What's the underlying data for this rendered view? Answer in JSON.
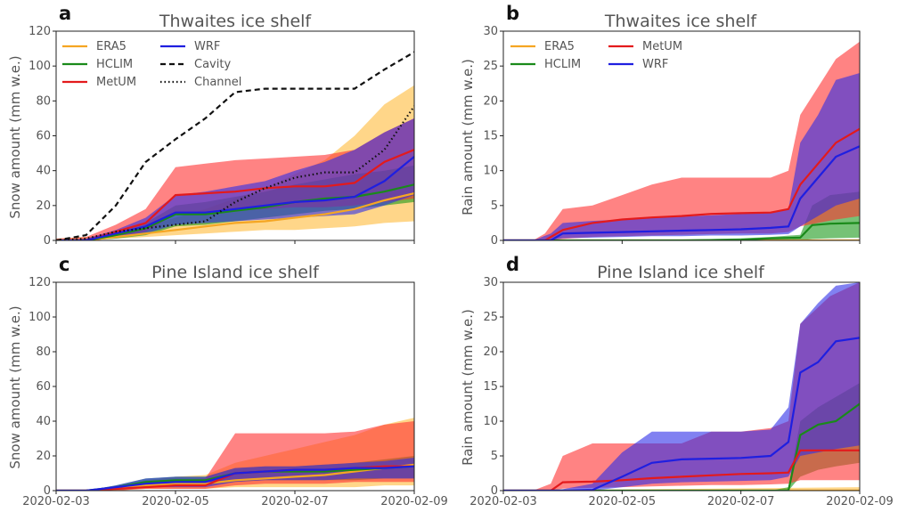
{
  "chart_data": [
    {
      "panel": "a",
      "type": "line",
      "title": "Thwaites ice shelf",
      "xlabel": "",
      "ylabel": "Snow amount (mm w.e.)",
      "xlim": [
        0,
        6
      ],
      "ylim": [
        0,
        120
      ],
      "yticks": [
        0,
        20,
        40,
        60,
        80,
        100,
        120
      ],
      "xticks": [
        0,
        2,
        4,
        6
      ],
      "xticklabels": [
        "",
        "",
        "",
        ""
      ],
      "legend": {
        "placement": "upper-left",
        "columns": 2,
        "entries": [
          "ERA5",
          "HCLIM",
          "MetUM",
          "WRF",
          "Cavity",
          "Channel"
        ]
      },
      "series": [
        {
          "name": "ERA5",
          "color": "#f5a623",
          "style": "solid",
          "x": [
            0,
            0.5,
            1,
            1.5,
            2,
            2.5,
            3,
            3.5,
            4,
            4.5,
            5,
            5.5,
            6
          ],
          "y": [
            0,
            0,
            2,
            4,
            6,
            8,
            10,
            11,
            13,
            15,
            18,
            23,
            27
          ],
          "low": [
            0,
            0,
            1,
            2,
            3,
            4,
            5,
            6,
            6,
            7,
            8,
            10,
            11
          ],
          "high": [
            1,
            2,
            4,
            8,
            13,
            18,
            24,
            30,
            38,
            46,
            60,
            78,
            89
          ]
        },
        {
          "name": "HCLIM",
          "color": "#1a8a1a",
          "style": "solid",
          "x": [
            0,
            0.5,
            1,
            1.5,
            2,
            2.5,
            3,
            3.5,
            4,
            4.5,
            5,
            5.5,
            6
          ],
          "y": [
            0,
            0,
            3,
            7,
            15,
            15,
            17,
            19,
            22,
            24,
            25,
            28,
            32
          ],
          "low": [
            0,
            0,
            1,
            3,
            8,
            9,
            11,
            13,
            15,
            17,
            18,
            20,
            22
          ],
          "high": [
            0,
            1,
            5,
            10,
            20,
            22,
            25,
            28,
            32,
            35,
            38,
            40,
            43
          ]
        },
        {
          "name": "MetUM",
          "color": "#e31a1c",
          "style": "solid",
          "x": [
            0,
            0.5,
            1,
            1.5,
            2,
            2.5,
            3,
            3.5,
            4,
            4.5,
            5,
            5.5,
            6
          ],
          "y": [
            0,
            0,
            5,
            10,
            26,
            27,
            28,
            30,
            31,
            31,
            33,
            45,
            52
          ],
          "low": [
            0,
            0,
            2,
            5,
            15,
            16,
            17,
            18,
            19,
            19,
            20,
            22,
            24
          ],
          "high": [
            1,
            2,
            9,
            18,
            42,
            44,
            46,
            47,
            48,
            49,
            52,
            62,
            70
          ]
        },
        {
          "name": "WRF",
          "color": "#1f1fe0",
          "style": "solid",
          "x": [
            0,
            0.5,
            1,
            1.5,
            2,
            2.5,
            3,
            3.5,
            4,
            4.5,
            5,
            5.5,
            6
          ],
          "y": [
            0,
            0,
            4,
            8,
            16,
            16,
            18,
            20,
            22,
            23,
            25,
            34,
            48
          ],
          "low": [
            0,
            0,
            2,
            4,
            9,
            10,
            11,
            12,
            13,
            14,
            15,
            20,
            26
          ],
          "high": [
            0,
            1,
            6,
            13,
            26,
            28,
            31,
            34,
            40,
            45,
            52,
            62,
            70
          ]
        },
        {
          "name": "Cavity",
          "color": "#111111",
          "style": "dashed",
          "x": [
            0,
            0.5,
            1,
            1.5,
            2,
            2.5,
            3,
            3.5,
            4,
            4.5,
            5,
            5.5,
            6
          ],
          "y": [
            0,
            3,
            20,
            45,
            58,
            70,
            85,
            87,
            87,
            87,
            87,
            98,
            108
          ]
        },
        {
          "name": "Channel",
          "color": "#111111",
          "style": "dotted",
          "x": [
            0,
            0.5,
            1,
            1.5,
            2,
            2.5,
            3,
            3.5,
            4,
            4.5,
            5,
            5.5,
            6
          ],
          "y": [
            0,
            1,
            5,
            7,
            9,
            11,
            22,
            30,
            36,
            39,
            39,
            52,
            77
          ]
        }
      ]
    },
    {
      "panel": "b",
      "type": "line",
      "title": "Thwaites ice shelf",
      "xlabel": "",
      "ylabel": "Rain amount (mm w.e.)",
      "xlim": [
        0,
        6
      ],
      "ylim": [
        0,
        30
      ],
      "yticks": [
        0,
        5,
        10,
        15,
        20,
        25,
        30
      ],
      "xticks": [
        0,
        2,
        4,
        6
      ],
      "xticklabels": [
        "",
        "",
        "",
        ""
      ],
      "legend": {
        "placement": "upper-left",
        "columns": 2,
        "entries": [
          "ERA5",
          "HCLIM",
          "MetUM",
          "WRF"
        ]
      },
      "series": [
        {
          "name": "ERA5",
          "color": "#f5a623",
          "style": "solid",
          "x": [
            0,
            6
          ],
          "y": [
            0,
            0
          ],
          "low": [
            0,
            0
          ],
          "high": [
            0,
            0
          ]
        },
        {
          "name": "HCLIM",
          "color": "#1a8a1a",
          "style": "solid",
          "x": [
            0,
            1,
            2,
            3,
            4,
            4.5,
            5,
            5.2,
            5.5,
            6
          ],
          "y": [
            0,
            0,
            0,
            0,
            0.1,
            0.3,
            0.4,
            2.2,
            2.4,
            2.5
          ],
          "low": [
            0,
            0,
            0,
            0,
            0,
            0,
            0,
            0.2,
            0.3,
            0.4
          ],
          "high": [
            0,
            0,
            0,
            0.1,
            0.3,
            0.5,
            0.8,
            5.0,
            6.5,
            7.0
          ]
        },
        {
          "name": "MetUM",
          "color": "#e31a1c",
          "style": "solid",
          "x": [
            0,
            0.5,
            0.7,
            1,
            1.5,
            2,
            2.5,
            3,
            3.5,
            4,
            4.5,
            4.8,
            5,
            5.3,
            5.6,
            6
          ],
          "y": [
            0,
            0,
            0,
            1.5,
            2.5,
            3.0,
            3.3,
            3.5,
            3.8,
            3.9,
            4.0,
            4.5,
            8.0,
            11.0,
            14.0,
            16.0
          ],
          "low": [
            0,
            0,
            0,
            0.2,
            0.5,
            0.6,
            0.7,
            0.8,
            0.9,
            1.0,
            1.0,
            1.2,
            2.0,
            2.5,
            3.0,
            3.5
          ],
          "high": [
            0,
            0,
            1,
            4.5,
            5.0,
            6.5,
            8.0,
            9.0,
            9.0,
            9.0,
            9.0,
            10.0,
            18.0,
            22.0,
            26.0,
            28.5
          ]
        },
        {
          "name": "WRF",
          "color": "#1f1fe0",
          "style": "solid",
          "x": [
            0,
            0.5,
            0.8,
            1,
            1.5,
            2,
            2.5,
            3,
            3.5,
            4,
            4.5,
            4.8,
            5,
            5.3,
            5.6,
            6
          ],
          "y": [
            0,
            0,
            0,
            1.0,
            1.1,
            1.2,
            1.3,
            1.4,
            1.5,
            1.6,
            1.8,
            2.0,
            6.0,
            9.0,
            12.0,
            13.5
          ],
          "low": [
            0,
            0,
            0,
            0.3,
            0.4,
            0.5,
            0.6,
            0.6,
            0.7,
            0.7,
            0.8,
            0.9,
            2.0,
            3.5,
            5.0,
            6.0
          ],
          "high": [
            0,
            0,
            1,
            2.5,
            2.8,
            3.0,
            3.2,
            3.4,
            3.6,
            3.8,
            4.0,
            4.5,
            14.0,
            18.0,
            23.0,
            24.0
          ]
        }
      ]
    },
    {
      "panel": "c",
      "type": "line",
      "title": "Pine Island ice shelf",
      "xlabel": "",
      "ylabel": "Snow amount (mm w.e.)",
      "xlim": [
        0,
        6
      ],
      "ylim": [
        0,
        120
      ],
      "yticks": [
        0,
        20,
        40,
        60,
        80,
        100,
        120
      ],
      "xticks": [
        0,
        2,
        4,
        6
      ],
      "xticklabels": [
        "2020-02-03",
        "2020-02-05",
        "2020-02-07",
        "2020-02-09"
      ],
      "series": [
        {
          "name": "ERA5",
          "color": "#f5a623",
          "style": "solid",
          "x": [
            0,
            0.5,
            1,
            1.5,
            2,
            2.5,
            3,
            3.5,
            4,
            4.5,
            5,
            5.5,
            6
          ],
          "y": [
            0,
            0,
            1,
            3,
            4,
            4,
            6,
            7,
            8,
            9,
            11,
            13,
            15
          ],
          "low": [
            0,
            0,
            0,
            1,
            1,
            1,
            2,
            2,
            2,
            2,
            2,
            3,
            3
          ],
          "high": [
            0,
            0,
            2,
            6,
            8,
            9,
            16,
            20,
            24,
            28,
            32,
            38,
            42
          ]
        },
        {
          "name": "HCLIM",
          "color": "#1a8a1a",
          "style": "solid",
          "x": [
            0,
            0.5,
            1,
            1.5,
            2,
            2.5,
            3,
            3.5,
            4,
            4.5,
            5,
            5.5,
            6
          ],
          "y": [
            0,
            0,
            2,
            5,
            6,
            6,
            10,
            11,
            11,
            11,
            12,
            13,
            14
          ],
          "low": [
            0,
            0,
            1,
            2,
            3,
            3,
            5,
            6,
            6,
            6,
            6,
            7,
            7
          ],
          "high": [
            0,
            0,
            3,
            7,
            8,
            8,
            13,
            14,
            14,
            15,
            16,
            18,
            20
          ]
        },
        {
          "name": "MetUM",
          "color": "#e31a1c",
          "style": "solid",
          "x": [
            0,
            0.5,
            1,
            1.5,
            2,
            2.5,
            3,
            3.5,
            4,
            4.5,
            5,
            5.5,
            6
          ],
          "y": [
            0,
            0,
            1,
            2,
            3,
            3,
            10,
            11,
            12,
            12,
            13,
            14,
            14
          ],
          "low": [
            0,
            0,
            0,
            1,
            1,
            1,
            3,
            4,
            4,
            4,
            5,
            5,
            5
          ],
          "high": [
            0,
            0,
            2,
            5,
            6,
            7,
            33,
            33,
            33,
            33,
            34,
            38,
            40
          ]
        },
        {
          "name": "WRF",
          "color": "#1f1fe0",
          "style": "solid",
          "x": [
            0,
            0.5,
            1,
            1.5,
            2,
            2.5,
            3,
            3.5,
            4,
            4.5,
            5,
            5.5,
            6
          ],
          "y": [
            0,
            0,
            2,
            4,
            5,
            5,
            10,
            11,
            12,
            12,
            13,
            13,
            14
          ],
          "low": [
            0,
            0,
            1,
            2,
            2,
            2,
            5,
            6,
            6,
            6,
            7,
            7,
            7
          ],
          "high": [
            0,
            0,
            3,
            7,
            8,
            8,
            13,
            14,
            14,
            15,
            16,
            17,
            19
          ]
        }
      ]
    },
    {
      "panel": "d",
      "type": "line",
      "title": "Pine Island ice shelf",
      "xlabel": "",
      "ylabel": "Rain amount (mm w.e.)",
      "xlim": [
        0,
        6
      ],
      "ylim": [
        0,
        30
      ],
      "yticks": [
        0,
        5,
        10,
        15,
        20,
        25,
        30
      ],
      "xticks": [
        0,
        2,
        4,
        6
      ],
      "xticklabels": [
        "2020-02-03",
        "2020-02-05",
        "2020-02-07",
        "2020-02-09"
      ],
      "series": [
        {
          "name": "ERA5",
          "color": "#f5a623",
          "style": "solid",
          "x": [
            0,
            6
          ],
          "y": [
            0,
            0
          ],
          "low": [
            0,
            0
          ],
          "high": [
            0,
            0.5
          ]
        },
        {
          "name": "HCLIM",
          "color": "#1a8a1a",
          "style": "solid",
          "x": [
            0,
            4.5,
            4.8,
            5.0,
            5.3,
            5.6,
            6
          ],
          "y": [
            0,
            0,
            0,
            8.0,
            9.5,
            10.0,
            12.5
          ],
          "low": [
            0,
            0,
            0,
            2.0,
            3.0,
            3.5,
            4.0
          ],
          "high": [
            0,
            0,
            0.5,
            10.0,
            12.0,
            13.5,
            15.5
          ]
        },
        {
          "name": "MetUM",
          "color": "#e31a1c",
          "style": "solid",
          "x": [
            0,
            0.5,
            0.8,
            1,
            1.5,
            2,
            2.5,
            3,
            3.5,
            4,
            4.5,
            4.8,
            5,
            5.5,
            6
          ],
          "y": [
            0,
            0,
            0,
            1.2,
            1.3,
            1.5,
            1.8,
            2.0,
            2.2,
            2.4,
            2.5,
            2.6,
            5.8,
            5.8,
            5.8
          ],
          "low": [
            0,
            0,
            0,
            0.3,
            0.4,
            0.5,
            0.6,
            0.7,
            0.8,
            0.8,
            0.9,
            1.0,
            1.5,
            1.5,
            1.5
          ],
          "high": [
            0,
            0,
            1,
            5.0,
            6.8,
            6.8,
            6.8,
            6.8,
            8.5,
            8.5,
            9.0,
            10.0,
            24.0,
            28.0,
            30.0
          ]
        },
        {
          "name": "WRF",
          "color": "#1f1fe0",
          "style": "solid",
          "x": [
            0,
            0.5,
            1,
            1.5,
            2,
            2.5,
            3,
            3.5,
            4,
            4.5,
            4.8,
            5,
            5.3,
            5.6,
            6
          ],
          "y": [
            0,
            0,
            0,
            0.1,
            2.0,
            4.0,
            4.5,
            4.6,
            4.7,
            5.0,
            7.0,
            17.0,
            18.5,
            21.5,
            22.0
          ],
          "low": [
            0,
            0,
            0,
            0,
            0.5,
            1.0,
            1.2,
            1.3,
            1.4,
            1.5,
            2.0,
            5.0,
            5.5,
            6.0,
            6.5
          ],
          "high": [
            0,
            0,
            0.2,
            1.0,
            5.5,
            8.5,
            8.5,
            8.5,
            8.5,
            8.8,
            12.0,
            24.0,
            27.0,
            29.5,
            30.0
          ]
        }
      ]
    }
  ],
  "panels": [
    {
      "letter": "a"
    },
    {
      "letter": "b"
    },
    {
      "letter": "c"
    },
    {
      "letter": "d"
    }
  ]
}
